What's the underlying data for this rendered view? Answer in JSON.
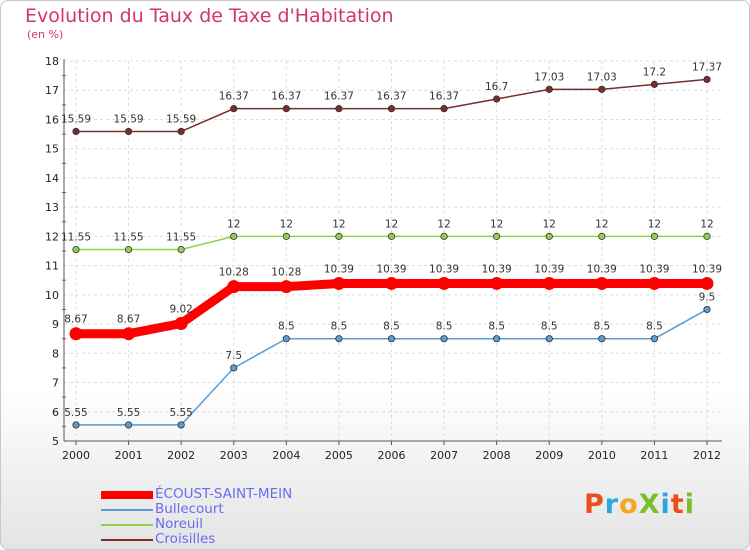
{
  "title": "Evolution du Taux de Taxe d'Habitation",
  "unit_label": "(en %)",
  "logo": {
    "text": "ProXiti",
    "letters": [
      "P",
      "r",
      "o",
      "X",
      "i",
      "t",
      "i"
    ],
    "colors": [
      "#e94e1b",
      "#2aa7df",
      "#f5a623",
      "#7bbd2a",
      "#2aa7df",
      "#e94e1b",
      "#7bbd2a"
    ]
  },
  "chart_data": {
    "type": "line",
    "title": "Evolution du Taux de Taxe d'Habitation",
    "ylabel": "(en %)",
    "xlabel": "",
    "categories": [
      "2000",
      "2001",
      "2002",
      "2003",
      "2004",
      "2005",
      "2006",
      "2007",
      "2008",
      "2009",
      "2010",
      "2011",
      "2012"
    ],
    "ylim": [
      5,
      18
    ],
    "yticks": [
      5,
      6,
      7,
      8,
      9,
      10,
      11,
      12,
      13,
      14,
      15,
      16,
      17,
      18
    ],
    "grid": true,
    "legend_position": "bottom-left",
    "series": [
      {
        "name": "ÉCOUST-SAINT-MEIN",
        "color": "#ff0000",
        "emphasis": true,
        "values": [
          8.67,
          8.67,
          9.02,
          10.28,
          10.28,
          10.39,
          10.39,
          10.39,
          10.39,
          10.39,
          10.39,
          10.39,
          10.39
        ],
        "labels": [
          "8.67",
          "8.67",
          "9.02",
          "10.28",
          "10.28",
          "10.39",
          "10.39",
          "10.39",
          "10.39",
          "10.39",
          "10.39",
          "10.39",
          "10.39"
        ]
      },
      {
        "name": "Bullecourt",
        "color": "#5b9bd5",
        "emphasis": false,
        "values": [
          5.55,
          5.55,
          5.55,
          7.5,
          8.5,
          8.5,
          8.5,
          8.5,
          8.5,
          8.5,
          8.5,
          8.5,
          9.5
        ],
        "labels": [
          "5.55",
          "5.55",
          "5.55",
          "7.5",
          "8.5",
          "8.5",
          "8.5",
          "8.5",
          "8.5",
          "8.5",
          "8.5",
          "8.5",
          "9.5"
        ]
      },
      {
        "name": "Noreuil",
        "color": "#8fd14f",
        "emphasis": false,
        "values": [
          11.55,
          11.55,
          11.55,
          12,
          12,
          12,
          12,
          12,
          12,
          12,
          12,
          12,
          12
        ],
        "labels": [
          "11.55",
          "11.55",
          "11.55",
          "12",
          "12",
          "12",
          "12",
          "12",
          "12",
          "12",
          "12",
          "12",
          "12"
        ]
      },
      {
        "name": "Croisilles",
        "color": "#7b2c2c",
        "emphasis": false,
        "values": [
          15.59,
          15.59,
          15.59,
          16.37,
          16.37,
          16.37,
          16.37,
          16.37,
          16.7,
          17.03,
          17.03,
          17.2,
          17.37
        ],
        "labels": [
          "15.59",
          "15.59",
          "15.59",
          "16.37",
          "16.37",
          "16.37",
          "16.37",
          "16.37",
          "16.7",
          "17.03",
          "17.03",
          "17.2",
          "17.37"
        ]
      }
    ]
  }
}
